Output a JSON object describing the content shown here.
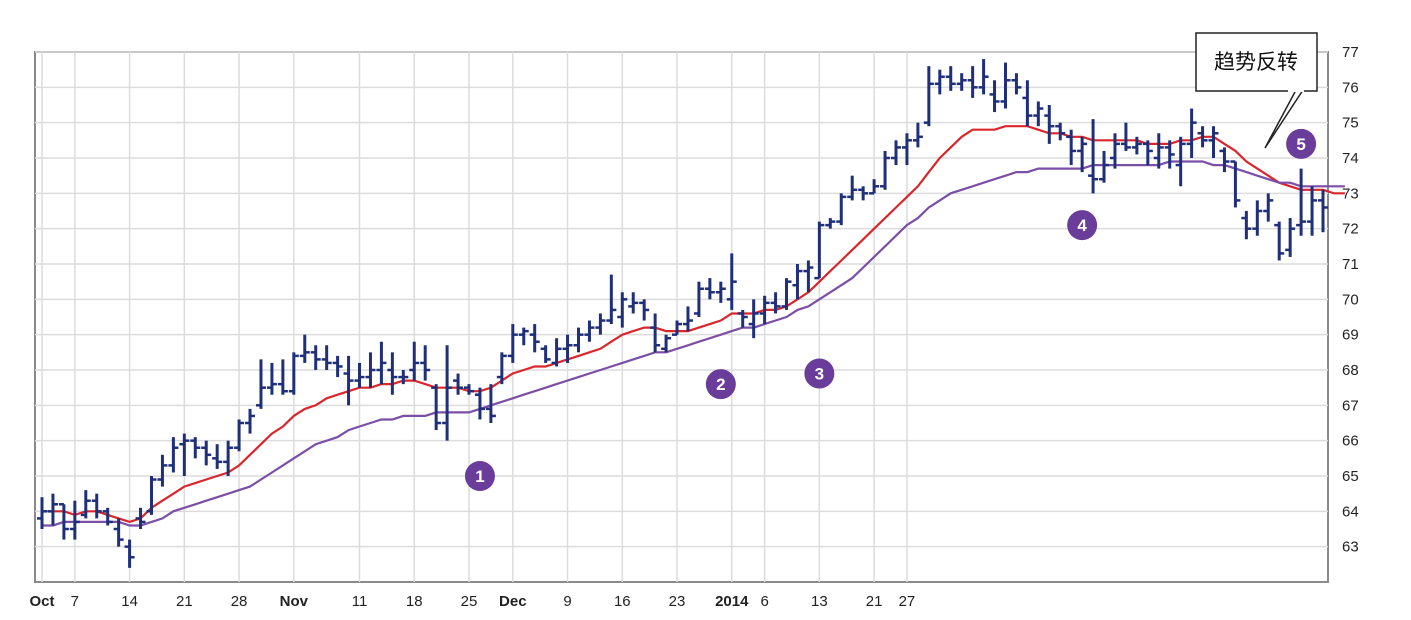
{
  "chart_data": {
    "type": "ohlc_bar",
    "y_axis": {
      "side": "right",
      "min": 62,
      "max": 77,
      "ticks": [
        63,
        64,
        65,
        66,
        67,
        68,
        69,
        70,
        71,
        72,
        73,
        74,
        75,
        76,
        77
      ]
    },
    "x_axis": {
      "labels": [
        {
          "text": "Oct",
          "bold": true,
          "index": 0
        },
        {
          "text": "7",
          "bold": false,
          "index": 3
        },
        {
          "text": "14",
          "bold": false,
          "index": 8
        },
        {
          "text": "21",
          "bold": false,
          "index": 13
        },
        {
          "text": "28",
          "bold": false,
          "index": 18
        },
        {
          "text": "Nov",
          "bold": true,
          "index": 23
        },
        {
          "text": "11",
          "bold": false,
          "index": 29
        },
        {
          "text": "18",
          "bold": false,
          "index": 34
        },
        {
          "text": "25",
          "bold": false,
          "index": 39
        },
        {
          "text": "Dec",
          "bold": true,
          "index": 43
        },
        {
          "text": "9",
          "bold": false,
          "index": 48
        },
        {
          "text": "16",
          "bold": false,
          "index": 53
        },
        {
          "text": "23",
          "bold": false,
          "index": 58
        },
        {
          "text": "2014",
          "bold": true,
          "index": 63
        },
        {
          "text": "6",
          "bold": false,
          "index": 66
        },
        {
          "text": "13",
          "bold": false,
          "index": 71
        },
        {
          "text": "21",
          "bold": false,
          "index": 76
        },
        {
          "text": "27",
          "bold": false,
          "index": 79
        }
      ]
    },
    "grid": true,
    "legend": "none",
    "ohlc": [
      [
        63.8,
        64.4,
        63.5,
        64.0
      ],
      [
        64.0,
        64.5,
        63.6,
        64.2
      ],
      [
        64.2,
        64.2,
        63.2,
        63.5
      ],
      [
        63.5,
        64.3,
        63.2,
        63.7
      ],
      [
        63.9,
        64.6,
        63.8,
        64.3
      ],
      [
        64.3,
        64.5,
        63.8,
        64.0
      ],
      [
        64.0,
        64.1,
        63.6,
        63.7
      ],
      [
        63.5,
        63.8,
        63.0,
        63.2
      ],
      [
        63.0,
        63.2,
        62.4,
        62.7
      ],
      [
        63.8,
        64.1,
        63.5,
        63.7
      ],
      [
        64.0,
        65.0,
        63.9,
        64.9
      ],
      [
        64.9,
        65.6,
        64.7,
        65.3
      ],
      [
        65.3,
        66.1,
        65.1,
        65.8
      ],
      [
        65.9,
        66.2,
        65.0,
        66.0
      ],
      [
        66.0,
        66.1,
        65.5,
        65.8
      ],
      [
        65.8,
        66.0,
        65.3,
        65.6
      ],
      [
        65.5,
        65.9,
        65.2,
        65.4
      ],
      [
        65.4,
        66.0,
        65.0,
        65.8
      ],
      [
        65.8,
        66.6,
        65.7,
        66.5
      ],
      [
        66.5,
        66.9,
        66.2,
        66.7
      ],
      [
        67.0,
        68.3,
        66.9,
        67.5
      ],
      [
        67.5,
        68.2,
        67.3,
        67.6
      ],
      [
        67.6,
        68.3,
        67.3,
        67.4
      ],
      [
        67.4,
        68.5,
        67.3,
        68.4
      ],
      [
        68.4,
        69.0,
        68.2,
        68.5
      ],
      [
        68.5,
        68.7,
        68.0,
        68.3
      ],
      [
        68.3,
        68.7,
        68.0,
        68.2
      ],
      [
        68.2,
        68.4,
        67.8,
        68.1
      ],
      [
        67.9,
        68.4,
        67.0,
        67.7
      ],
      [
        67.7,
        68.2,
        67.5,
        67.8
      ],
      [
        67.8,
        68.5,
        67.5,
        68.0
      ],
      [
        68.0,
        68.8,
        67.6,
        68.2
      ],
      [
        68.0,
        68.5,
        67.3,
        67.8
      ],
      [
        67.8,
        68.0,
        67.6,
        67.8
      ],
      [
        68.0,
        68.8,
        67.7,
        68.2
      ],
      [
        68.2,
        68.7,
        67.7,
        68.0
      ],
      [
        67.5,
        67.6,
        66.3,
        66.5
      ],
      [
        66.5,
        68.7,
        66.0,
        67.5
      ],
      [
        67.7,
        67.9,
        67.3,
        67.5
      ],
      [
        67.5,
        67.6,
        67.3,
        67.4
      ],
      [
        67.3,
        67.5,
        66.6,
        66.9
      ],
      [
        66.9,
        67.6,
        66.5,
        66.7
      ],
      [
        67.8,
        68.5,
        67.6,
        68.4
      ],
      [
        68.4,
        69.3,
        68.2,
        69.0
      ],
      [
        69.0,
        69.2,
        68.7,
        69.1
      ],
      [
        69.0,
        69.3,
        68.5,
        68.8
      ],
      [
        68.6,
        68.7,
        68.2,
        68.3
      ],
      [
        68.2,
        68.9,
        68.1,
        68.6
      ],
      [
        68.6,
        69.0,
        68.2,
        68.7
      ],
      [
        68.7,
        69.2,
        68.5,
        69.0
      ],
      [
        69.0,
        69.4,
        68.8,
        69.2
      ],
      [
        69.2,
        69.6,
        69.0,
        69.4
      ],
      [
        69.4,
        70.7,
        69.3,
        69.7
      ],
      [
        69.5,
        70.2,
        69.2,
        70.0
      ],
      [
        69.8,
        70.2,
        69.6,
        69.9
      ],
      [
        69.9,
        70.0,
        69.4,
        69.7
      ],
      [
        69.2,
        69.6,
        68.5,
        68.7
      ],
      [
        68.6,
        69.0,
        68.5,
        68.9
      ],
      [
        69.0,
        69.4,
        69.0,
        69.3
      ],
      [
        69.3,
        69.8,
        69.1,
        69.4
      ],
      [
        69.6,
        70.5,
        69.5,
        70.3
      ],
      [
        70.3,
        70.6,
        70.0,
        70.2
      ],
      [
        70.2,
        70.5,
        69.9,
        70.3
      ],
      [
        70.0,
        71.3,
        69.7,
        70.5
      ],
      [
        69.6,
        69.7,
        69.2,
        69.5
      ],
      [
        69.3,
        70.0,
        68.9,
        69.6
      ],
      [
        69.6,
        70.1,
        69.3,
        69.9
      ],
      [
        69.9,
        70.2,
        69.6,
        69.8
      ],
      [
        69.8,
        70.6,
        69.7,
        70.5
      ],
      [
        70.4,
        71.0,
        70.0,
        70.8
      ],
      [
        70.8,
        71.1,
        70.2,
        70.9
      ],
      [
        70.6,
        72.2,
        70.6,
        72.1
      ],
      [
        72.1,
        72.3,
        72.0,
        72.2
      ],
      [
        72.2,
        73.0,
        72.1,
        72.9
      ],
      [
        72.9,
        73.5,
        72.8,
        73.1
      ],
      [
        73.1,
        73.2,
        72.8,
        73.0
      ],
      [
        73.0,
        73.4,
        73.0,
        73.2
      ],
      [
        73.2,
        74.2,
        73.1,
        74.0
      ],
      [
        74.0,
        74.5,
        73.8,
        74.3
      ],
      [
        74.3,
        74.7,
        73.8,
        74.5
      ],
      [
        74.5,
        75.0,
        74.3,
        74.6
      ],
      [
        75.0,
        76.6,
        74.9,
        76.1
      ],
      [
        76.1,
        76.5,
        75.8,
        76.3
      ],
      [
        76.3,
        76.6,
        75.9,
        76.1
      ],
      [
        76.1,
        76.4,
        75.9,
        76.2
      ],
      [
        76.2,
        76.6,
        75.7,
        76.0
      ],
      [
        76.0,
        76.8,
        75.8,
        76.3
      ],
      [
        75.8,
        76.2,
        75.3,
        75.6
      ],
      [
        75.6,
        76.7,
        75.4,
        76.2
      ],
      [
        76.2,
        76.4,
        75.8,
        76.0
      ],
      [
        75.7,
        76.2,
        74.9,
        75.2
      ],
      [
        75.2,
        75.6,
        74.9,
        75.4
      ],
      [
        75.2,
        75.5,
        74.4,
        74.9
      ],
      [
        74.9,
        75.0,
        74.5,
        74.7
      ],
      [
        74.6,
        74.8,
        73.8,
        74.2
      ],
      [
        74.2,
        74.6,
        73.6,
        74.4
      ],
      [
        73.5,
        75.1,
        73.0,
        73.4
      ],
      [
        73.4,
        74.2,
        73.3,
        73.8
      ],
      [
        74.0,
        74.7,
        73.7,
        74.4
      ],
      [
        74.4,
        75.0,
        74.2,
        74.3
      ],
      [
        74.3,
        74.6,
        74.1,
        74.4
      ],
      [
        74.4,
        74.5,
        73.8,
        74.2
      ],
      [
        74.0,
        74.7,
        73.7,
        74.3
      ],
      [
        74.3,
        74.5,
        73.7,
        74.1
      ],
      [
        73.8,
        74.6,
        73.2,
        74.4
      ],
      [
        74.4,
        75.4,
        74.0,
        75.0
      ],
      [
        74.7,
        74.9,
        74.3,
        74.5
      ],
      [
        74.5,
        74.9,
        74.0,
        74.7
      ],
      [
        74.2,
        74.3,
        73.6,
        73.9
      ],
      [
        73.9,
        73.9,
        72.6,
        72.8
      ],
      [
        72.3,
        72.5,
        71.7,
        72.0
      ],
      [
        72.0,
        72.8,
        71.8,
        72.5
      ],
      [
        72.5,
        73.0,
        72.2,
        72.8
      ],
      [
        72.1,
        72.2,
        71.1,
        71.3
      ],
      [
        71.4,
        72.3,
        71.2,
        72.0
      ],
      [
        72.1,
        73.7,
        71.8,
        72.2
      ],
      [
        72.2,
        73.2,
        71.8,
        72.8
      ],
      [
        72.8,
        73.1,
        71.9,
        72.6
      ]
    ],
    "series": [
      {
        "color": "#d8262c",
        "values": [
          64.0,
          64.0,
          64.0,
          63.9,
          64.0,
          64.0,
          63.9,
          63.8,
          63.7,
          63.8,
          64.1,
          64.3,
          64.5,
          64.7,
          64.8,
          64.9,
          65.0,
          65.1,
          65.3,
          65.6,
          65.9,
          66.2,
          66.4,
          66.7,
          66.9,
          67.0,
          67.2,
          67.3,
          67.4,
          67.5,
          67.5,
          67.6,
          67.6,
          67.7,
          67.7,
          67.6,
          67.5,
          67.5,
          67.5,
          67.4,
          67.4,
          67.5,
          67.7,
          67.9,
          68.0,
          68.1,
          68.1,
          68.2,
          68.3,
          68.4,
          68.5,
          68.6,
          68.8,
          69.0,
          69.1,
          69.2,
          69.2,
          69.1,
          69.1,
          69.1,
          69.2,
          69.3,
          69.4,
          69.6,
          69.6,
          69.6,
          69.7,
          69.7,
          69.8,
          70.0,
          70.2,
          70.5,
          70.8,
          71.1,
          71.4,
          71.7,
          72.0,
          72.3,
          72.6,
          72.9,
          73.2,
          73.6,
          74.0,
          74.3,
          74.6,
          74.8,
          74.8,
          74.8,
          74.9,
          74.9,
          74.9,
          74.8,
          74.7,
          74.7,
          74.6,
          74.6,
          74.5,
          74.5,
          74.5,
          74.5,
          74.5,
          74.4,
          74.4,
          74.4,
          74.5,
          74.5,
          74.6,
          74.6,
          74.4,
          74.2,
          73.9,
          73.7,
          73.5,
          73.3,
          73.2,
          73.1,
          73.1,
          73.1,
          73.0,
          73.0
        ]
      },
      {
        "color": "#7b4fa6",
        "values": [
          63.6,
          63.6,
          63.7,
          63.7,
          63.7,
          63.7,
          63.7,
          63.7,
          63.6,
          63.6,
          63.7,
          63.8,
          64.0,
          64.1,
          64.2,
          64.3,
          64.4,
          64.5,
          64.6,
          64.7,
          64.9,
          65.1,
          65.3,
          65.5,
          65.7,
          65.9,
          66.0,
          66.1,
          66.3,
          66.4,
          66.5,
          66.6,
          66.6,
          66.7,
          66.7,
          66.7,
          66.8,
          66.8,
          66.8,
          66.8,
          66.9,
          67.0,
          67.1,
          67.2,
          67.3,
          67.4,
          67.5,
          67.6,
          67.7,
          67.8,
          67.9,
          68.0,
          68.1,
          68.2,
          68.3,
          68.4,
          68.5,
          68.5,
          68.6,
          68.7,
          68.8,
          68.9,
          69.0,
          69.1,
          69.2,
          69.2,
          69.3,
          69.4,
          69.5,
          69.7,
          69.8,
          70.0,
          70.2,
          70.4,
          70.6,
          70.9,
          71.2,
          71.5,
          71.8,
          72.1,
          72.3,
          72.6,
          72.8,
          73.0,
          73.1,
          73.2,
          73.3,
          73.4,
          73.5,
          73.6,
          73.6,
          73.7,
          73.7,
          73.7,
          73.7,
          73.7,
          73.8,
          73.8,
          73.8,
          73.8,
          73.8,
          73.8,
          73.8,
          73.9,
          73.9,
          73.9,
          73.9,
          73.8,
          73.8,
          73.7,
          73.6,
          73.5,
          73.4,
          73.3,
          73.3,
          73.2,
          73.2,
          73.2,
          73.2,
          73.2
        ]
      }
    ],
    "markers": [
      {
        "label": "1",
        "index": 40,
        "value": 65.0
      },
      {
        "label": "2",
        "index": 62,
        "value": 67.6
      },
      {
        "label": "3",
        "index": 71,
        "value": 67.9
      },
      {
        "label": "4",
        "index": 95,
        "value": 72.1
      },
      {
        "label": "5",
        "index": 115,
        "value": 74.4
      }
    ],
    "callout": {
      "text": "趋势反转",
      "anchor_index": 111,
      "anchor_value": 74.3
    },
    "colors": {
      "bars": "#1f2f7a",
      "grid": "#dcdcdc",
      "marker_fill": "#6a3d9a",
      "frame": "#8a8a8a"
    }
  }
}
